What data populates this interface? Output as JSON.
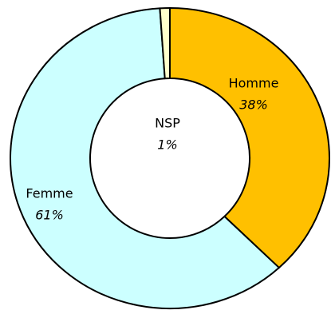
{
  "chart_data": {
    "type": "donut",
    "categories": [
      "Homme",
      "Femme",
      "NSP"
    ],
    "values": [
      38,
      61,
      1
    ],
    "value_labels": [
      "38%",
      "61%",
      "1%"
    ],
    "colors": [
      "#FFC000",
      "#CCFFFF",
      "#FFFFCC"
    ]
  }
}
